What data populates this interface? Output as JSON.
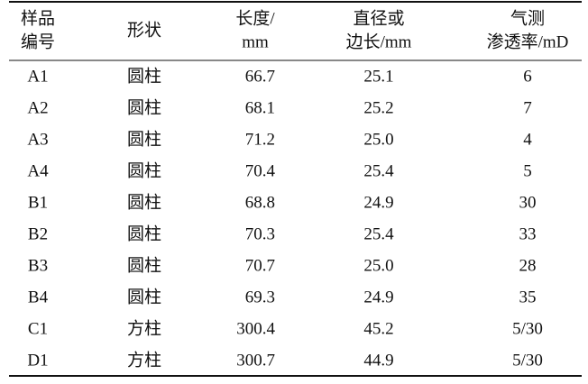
{
  "table": {
    "header": [
      [
        "样品",
        "编号"
      ],
      [
        "形状"
      ],
      [
        "长度/",
        "mm"
      ],
      [
        "直径或",
        "边长/mm"
      ],
      [
        "气测",
        "渗透率/mD"
      ]
    ],
    "rows": [
      [
        "A1",
        "圆柱",
        "66.7",
        "25.1",
        "6"
      ],
      [
        "A2",
        "圆柱",
        "68.1",
        "25.2",
        "7"
      ],
      [
        "A3",
        "圆柱",
        "71.2",
        "25.0",
        "4"
      ],
      [
        "A4",
        "圆柱",
        "70.4",
        "25.4",
        "5"
      ],
      [
        "B1",
        "圆柱",
        "68.8",
        "24.9",
        "30"
      ],
      [
        "B2",
        "圆柱",
        "70.3",
        "25.4",
        "33"
      ],
      [
        "B3",
        "圆柱",
        "70.7",
        "25.0",
        "28"
      ],
      [
        "B4",
        "圆柱",
        "69.3",
        "24.9",
        "35"
      ],
      [
        "C1",
        "方柱",
        "300.4",
        "45.2",
        "5/30"
      ],
      [
        "D1",
        "方柱",
        "300.7",
        "44.9",
        "5/30"
      ]
    ]
  }
}
